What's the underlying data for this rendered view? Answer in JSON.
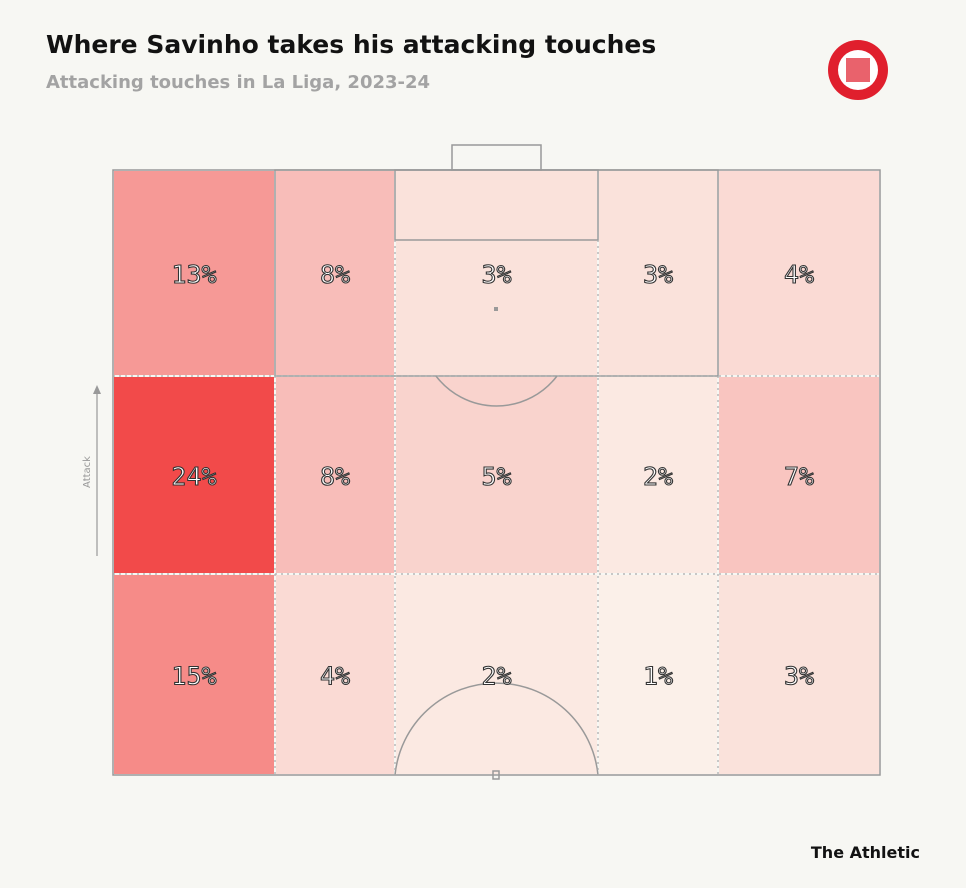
{
  "chart_data": {
    "type": "heatmap",
    "title": "Where Savinho takes his attacking touches",
    "subtitle": "Attacking touches in La Liga, 2023-24",
    "y_label": "Attack",
    "credit": "The Athletic",
    "color_low": "#fbf0e9",
    "color_high": "#f24a4a",
    "values": [
      [
        13,
        8,
        3,
        3,
        4
      ],
      [
        24,
        8,
        5,
        2,
        7
      ],
      [
        15,
        4,
        2,
        1,
        3
      ]
    ],
    "value_labels": [
      [
        "13%",
        "8%",
        "3%",
        "3%",
        "4%"
      ],
      [
        "24%",
        "8%",
        "5%",
        "2%",
        "7%"
      ],
      [
        "15%",
        "4%",
        "2%",
        "1%",
        "3%"
      ]
    ]
  }
}
